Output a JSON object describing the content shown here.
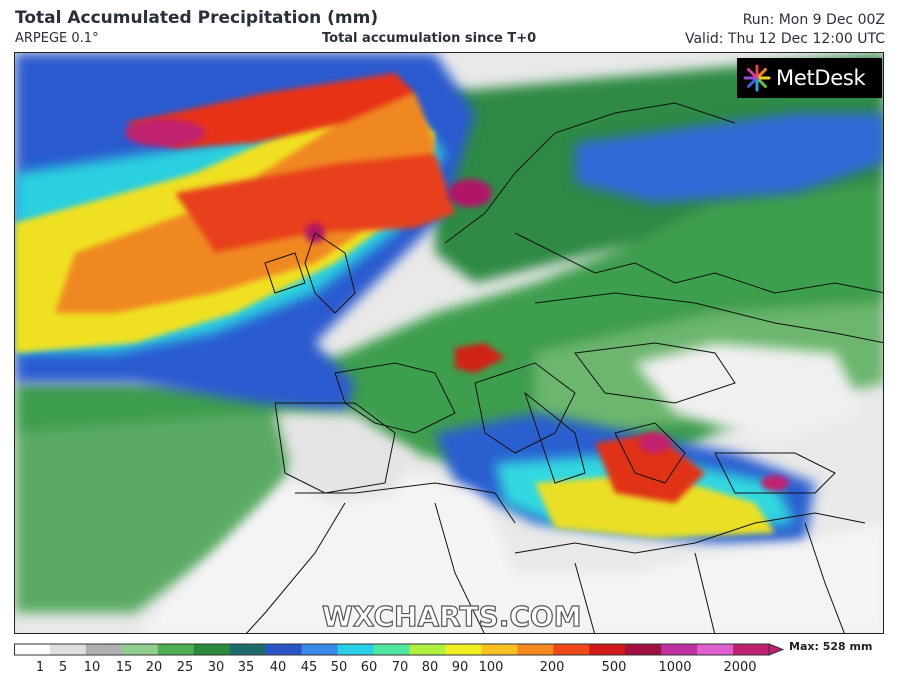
{
  "header": {
    "title": "Total Accumulated Precipitation (mm)",
    "model": "ARPEGE 0.1°",
    "subtitle": "Total accumulation since T+0",
    "run": "Run: Mon 9 Dec 00Z",
    "valid": "Valid: Thu 12 Dec 12:00 UTC"
  },
  "logo": {
    "text": "MetDesk",
    "icon": "starburst-logo-icon"
  },
  "watermark": "WXCHARTS.COM",
  "legend": {
    "max_label": "Max: 528 mm",
    "ticks": [
      "1",
      "5",
      "10",
      "15",
      "20",
      "25",
      "30",
      "35",
      "40",
      "45",
      "50",
      "60",
      "70",
      "80",
      "90",
      "100",
      "200",
      "500",
      "1000",
      "2000"
    ],
    "colors": [
      "#ffffff",
      "#e0e0e0",
      "#b0b0b0",
      "#8fce8f",
      "#4fae4f",
      "#2a8a3a",
      "#1e6b6b",
      "#2a55c8",
      "#3a8ae8",
      "#2ad0e8",
      "#50e8a0",
      "#b0f040",
      "#f0f020",
      "#f8c020",
      "#f88820",
      "#f04818",
      "#d01818",
      "#a01040",
      "#c030a0",
      "#e060d0",
      "#c02070"
    ]
  },
  "colors": {
    "text": "#2a2f3a",
    "ocean_heavy": "#e8301a",
    "ocean_medium": "#f0e020",
    "light_precip": "#3a9c4a",
    "land_dry": "#ececec"
  }
}
